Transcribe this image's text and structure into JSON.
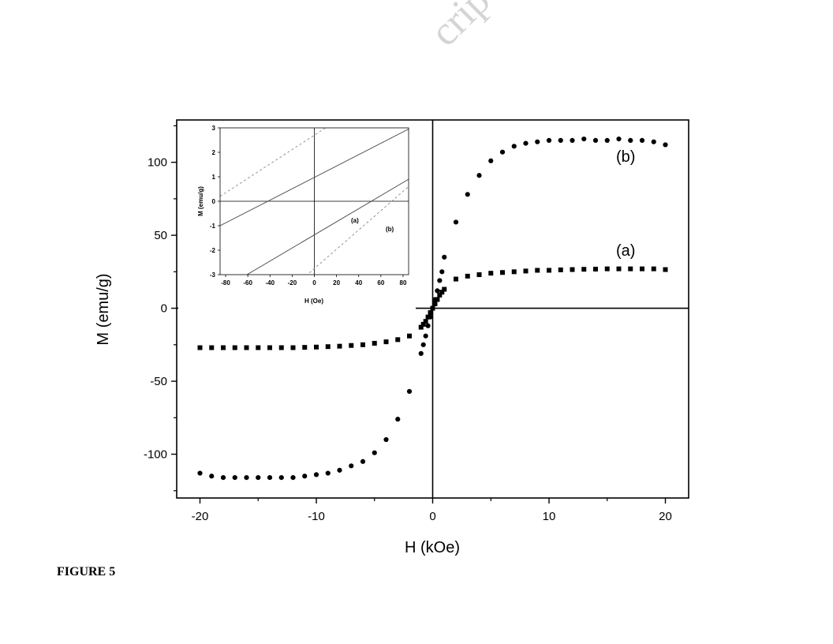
{
  "caption": "FIGURE 5",
  "watermark_text": "cript",
  "chart_data": [
    {
      "type": "scatter",
      "title": "",
      "xlabel": "H (kOe)",
      "ylabel": "M (emu/g)",
      "xlim": [
        -22,
        22
      ],
      "ylim": [
        -130,
        129
      ],
      "xticks": [
        -20,
        -10,
        0,
        10,
        20
      ],
      "yticks": [
        -100,
        -50,
        0,
        50,
        100
      ],
      "grid": false,
      "zero_lines": true,
      "series": [
        {
          "name": "(a)",
          "marker": "square",
          "x": [
            -20,
            -19,
            -18,
            -17,
            -16,
            -15,
            -14,
            -13,
            -12,
            -11,
            -10,
            -9,
            -8,
            -7,
            -6,
            -5,
            -4,
            -3,
            -2,
            -1,
            -0.8,
            -0.6,
            -0.4,
            -0.2,
            0,
            0.2,
            0.4,
            0.6,
            0.8,
            1,
            2,
            3,
            4,
            5,
            6,
            7,
            8,
            9,
            10,
            11,
            12,
            13,
            14,
            15,
            16,
            17,
            18,
            19,
            20
          ],
          "y": [
            -27,
            -27,
            -27,
            -27,
            -27,
            -27,
            -27,
            -27,
            -27,
            -26.8,
            -26.6,
            -26.3,
            -26,
            -25.5,
            -25,
            -24,
            -23,
            -21.5,
            -19,
            -13,
            -11,
            -9,
            -6,
            -3,
            0,
            3,
            6,
            9,
            11,
            13,
            20,
            22,
            23,
            24,
            24.5,
            25,
            25.5,
            26,
            26,
            26.3,
            26.5,
            26.7,
            26.8,
            27,
            27,
            27,
            27,
            27,
            26.5
          ]
        },
        {
          "name": "(b)",
          "marker": "circle",
          "x": [
            -20,
            -19,
            -18,
            -17,
            -16,
            -15,
            -14,
            -13,
            -12,
            -11,
            -10,
            -9,
            -8,
            -7,
            -6,
            -5,
            -4,
            -3,
            -2,
            -1,
            -0.8,
            -0.6,
            -0.4,
            -0.2,
            0,
            0.2,
            0.4,
            0.6,
            0.8,
            1,
            2,
            3,
            4,
            5,
            6,
            7,
            8,
            9,
            10,
            11,
            12,
            13,
            14,
            15,
            16,
            17,
            18,
            19,
            20
          ],
          "y": [
            -113,
            -115,
            -116,
            -116,
            -116,
            -116,
            -116,
            -116,
            -116,
            -115,
            -114,
            -113,
            -111,
            -108,
            -105,
            -99,
            -90,
            -76,
            -57,
            -31,
            -25,
            -19,
            -12,
            -6,
            0,
            6,
            12,
            19,
            25,
            35,
            59,
            78,
            91,
            101,
            107,
            111,
            113,
            114,
            115,
            115,
            115,
            116,
            115,
            115,
            116,
            115,
            115,
            114,
            112
          ]
        }
      ],
      "annotations": [
        "(a)",
        "(b)"
      ]
    },
    {
      "type": "line",
      "title": "",
      "xlabel": "H (Oe)",
      "ylabel": "M (emu/g)",
      "xlim": [
        -85,
        85
      ],
      "ylim": [
        -3,
        3
      ],
      "xticks": [
        -80,
        -60,
        -40,
        -20,
        0,
        20,
        40,
        60,
        80
      ],
      "yticks": [
        -3,
        -2,
        -1,
        0,
        1,
        2,
        3
      ],
      "grid": false,
      "zero_lines": true,
      "series": [
        {
          "name": "(a)",
          "style": "solid",
          "x": [
            -85,
            85
          ],
          "y": [
            -1.0,
            2.95
          ]
        },
        {
          "name": "(a)",
          "style": "solid",
          "x": [
            -85,
            85
          ],
          "y": [
            -3.65,
            0.9
          ]
        },
        {
          "name": "(b)",
          "style": "dotted",
          "x": [
            -85,
            85
          ],
          "y": [
            0.2,
            5.2
          ]
        },
        {
          "name": "(b)",
          "style": "dotted",
          "x": [
            -85,
            85
          ],
          "y": [
            -6.1,
            0.6
          ]
        }
      ],
      "annotations": [
        "(a)",
        "(b)"
      ]
    }
  ]
}
